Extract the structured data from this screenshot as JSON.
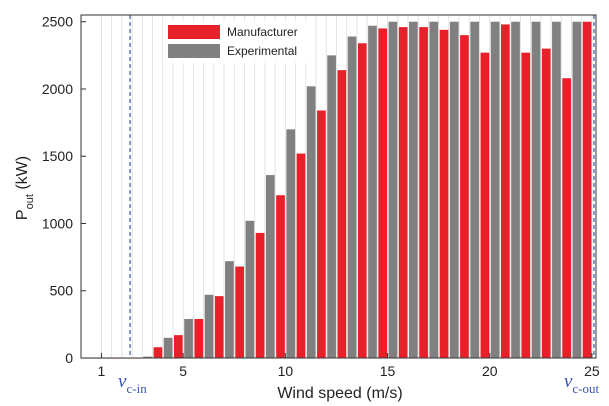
{
  "chart_data": {
    "type": "bar",
    "title": "",
    "xlabel": "Wind speed (m/s)",
    "ylabel_main": "P",
    "ylabel_sub": "out",
    "ylabel_unit": " (kW)",
    "xlim": [
      0,
      25.2
    ],
    "ylim": [
      0,
      2550
    ],
    "x_ticks": [
      1,
      5,
      10,
      15,
      20,
      25
    ],
    "y_ticks": [
      0,
      500,
      1000,
      1500,
      2000,
      2500
    ],
    "grid": "vertical",
    "legend_position": "top-left",
    "colors": {
      "manufacturer": "#e8202a",
      "experimental": "#808080",
      "marker": "#3a55b0"
    },
    "x": [
      0.5,
      1,
      1.5,
      2,
      2.5,
      3,
      3.5,
      4,
      4.5,
      5,
      5.5,
      6,
      6.5,
      7,
      7.5,
      8,
      8.5,
      9,
      9.5,
      10,
      10.5,
      11,
      11.5,
      12,
      12.5,
      13,
      13.5,
      14,
      14.5,
      15,
      15.5,
      16,
      16.5,
      17,
      17.5,
      18,
      18.5,
      19,
      19.5,
      20,
      20.5,
      21,
      21.5,
      22,
      22.5,
      23,
      23.5,
      24,
      24.5,
      25
    ],
    "series": [
      {
        "name": "Manufacturer",
        "values": [
          0,
          0,
          0,
          0,
          0,
          0,
          50,
          80,
          150,
          170,
          290,
          290,
          480,
          460,
          730,
          680,
          1020,
          930,
          1360,
          1210,
          1700,
          1520,
          2020,
          1840,
          2250,
          2140,
          2390,
          2340,
          2470,
          2450,
          2500,
          2460,
          2500,
          2460,
          2500,
          2440,
          2500,
          2400,
          2500,
          2270,
          2500,
          2480,
          2500,
          2270,
          2500,
          2300,
          2500,
          2080,
          2500,
          2500
        ]
      },
      {
        "name": "Experimental",
        "values": [
          0,
          0,
          0,
          0,
          0,
          0,
          10,
          70,
          150,
          160,
          290,
          290,
          470,
          460,
          720,
          680,
          1020,
          930,
          1360,
          1210,
          1700,
          1520,
          2020,
          1840,
          2250,
          2140,
          2390,
          2340,
          2470,
          2450,
          2500,
          2460,
          2500,
          2460,
          2500,
          2440,
          2500,
          2400,
          2500,
          2270,
          2500,
          2480,
          2500,
          2270,
          2500,
          2300,
          2500,
          2080,
          2500,
          2500
        ]
      }
    ],
    "error": [
      0,
      0,
      0,
      0,
      0,
      0,
      0,
      10,
      0,
      10,
      0,
      10,
      0,
      10,
      0,
      10,
      0,
      15,
      0,
      15,
      0,
      20,
      0,
      20,
      0,
      25,
      0,
      25,
      0,
      25,
      0,
      25,
      0,
      30,
      0,
      30,
      0,
      35,
      0,
      45,
      0,
      50,
      0,
      80,
      0,
      110,
      0,
      180,
      0,
      0
    ],
    "markers": [
      {
        "x": 2.4,
        "label": "v",
        "sub": "c-in"
      },
      {
        "x": 25.1,
        "label": "v",
        "sub": "c-out"
      }
    ]
  }
}
